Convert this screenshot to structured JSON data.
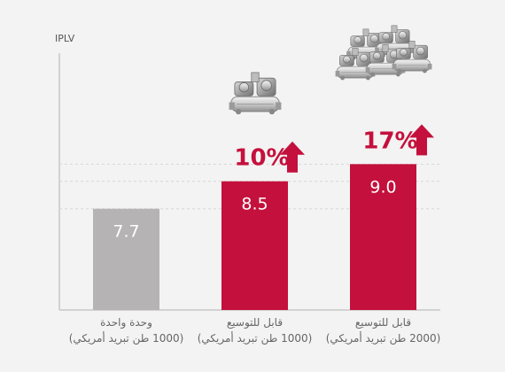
{
  "chart_data": {
    "type": "bar",
    "ylabel": "IPLV",
    "categories": [
      [
        "وحدة واحدة",
        "(1000 طن تبريد أمريكي)"
      ],
      [
        "قابل للتوسيع",
        "(1000 طن تبريد أمريكي)"
      ],
      [
        "قابل للتوسيع",
        "(2000 طن تبريد أمريكي)"
      ]
    ],
    "values": [
      7.7,
      8.5,
      9.0
    ],
    "value_labels": [
      "7.7",
      "8.5",
      "9.0"
    ],
    "increase_labels": [
      "",
      "10%",
      "17%"
    ],
    "grid": true,
    "colors": {
      "baseline_bar": "#b5b3b3",
      "highlight_bar": "#c4103c",
      "arrow": "#c4103c",
      "background": "#f3f3f3"
    },
    "icons": [
      "",
      "single-chiller-unit-icon",
      "modular-chiller-units-icon"
    ]
  }
}
